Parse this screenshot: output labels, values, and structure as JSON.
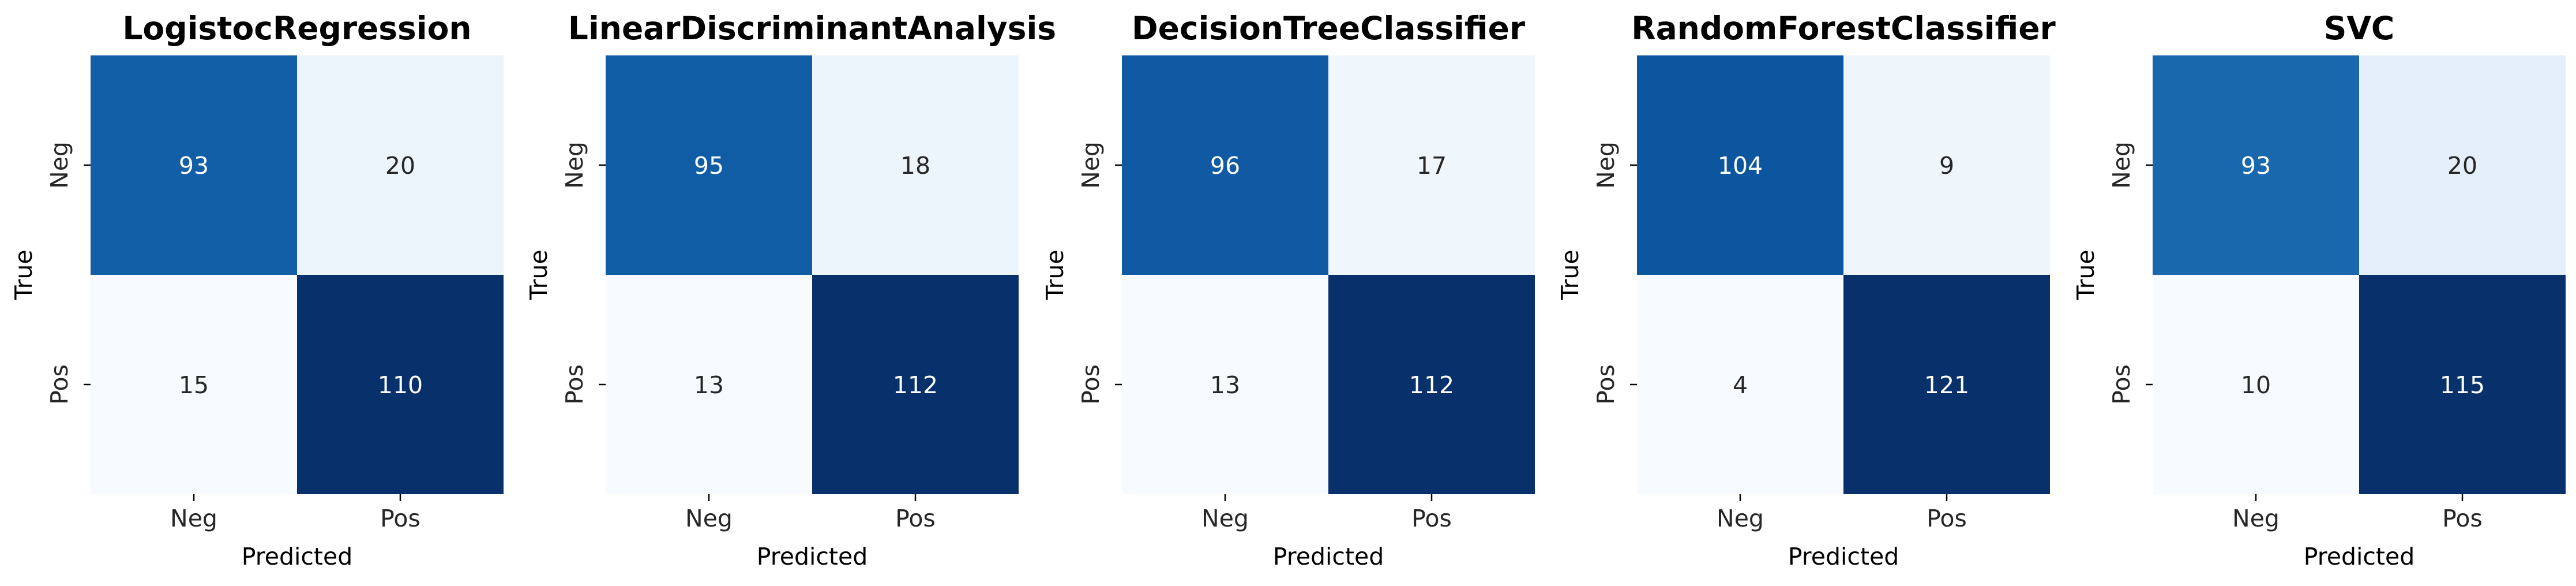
{
  "chart_data": [
    {
      "type": "heatmap",
      "title": "LogistocRegression",
      "xlabel": "Predicted",
      "ylabel": "True",
      "x_categories": [
        "Neg",
        "Pos"
      ],
      "y_categories": [
        "Neg",
        "Pos"
      ],
      "values": [
        [
          93,
          20
        ],
        [
          15,
          110
        ]
      ],
      "colormap": "Blues",
      "colorbar": false
    },
    {
      "type": "heatmap",
      "title": "LinearDiscriminantAnalysis",
      "xlabel": "Predicted",
      "ylabel": "True",
      "x_categories": [
        "Neg",
        "Pos"
      ],
      "y_categories": [
        "Neg",
        "Pos"
      ],
      "values": [
        [
          95,
          18
        ],
        [
          13,
          112
        ]
      ],
      "colormap": "Blues",
      "colorbar": false
    },
    {
      "type": "heatmap",
      "title": "DecisionTreeClassifier",
      "xlabel": "Predicted",
      "ylabel": "True",
      "x_categories": [
        "Neg",
        "Pos"
      ],
      "y_categories": [
        "Neg",
        "Pos"
      ],
      "values": [
        [
          96,
          17
        ],
        [
          13,
          112
        ]
      ],
      "colormap": "Blues",
      "colorbar": false
    },
    {
      "type": "heatmap",
      "title": "RandomForestClassifier",
      "xlabel": "Predicted",
      "ylabel": "True",
      "x_categories": [
        "Neg",
        "Pos"
      ],
      "y_categories": [
        "Neg",
        "Pos"
      ],
      "values": [
        [
          104,
          9
        ],
        [
          4,
          121
        ]
      ],
      "colormap": "Blues",
      "colorbar": false
    },
    {
      "type": "heatmap",
      "title": "SVC",
      "xlabel": "Predicted",
      "ylabel": "True",
      "x_categories": [
        "Neg",
        "Pos"
      ],
      "y_categories": [
        "Neg",
        "Pos"
      ],
      "values": [
        [
          93,
          20
        ],
        [
          10,
          115
        ]
      ],
      "colormap": "Blues",
      "colorbar": false
    }
  ],
  "colors": {
    "text_dark": "#262626",
    "text_light": "#ffffff",
    "axis": "#000000",
    "background": "#ffffff"
  }
}
